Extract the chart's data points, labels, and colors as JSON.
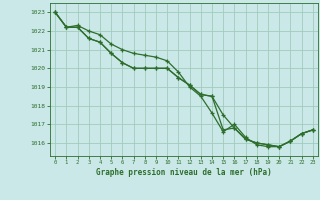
{
  "title": "Graphe pression niveau de la mer (hPa)",
  "bg_color": "#cbe8e8",
  "grid_color": "#a0ccbb",
  "line_color": "#2d6e2d",
  "marker_color": "#2d6e2d",
  "xlim": [
    -0.5,
    23.5
  ],
  "ylim": [
    1015.3,
    1023.5
  ],
  "yticks": [
    1016,
    1017,
    1018,
    1019,
    1020,
    1021,
    1022,
    1023
  ],
  "xticks": [
    0,
    1,
    2,
    3,
    4,
    5,
    6,
    7,
    8,
    9,
    10,
    11,
    12,
    13,
    14,
    15,
    16,
    17,
    18,
    19,
    20,
    21,
    22,
    23
  ],
  "series1": [
    1023.0,
    1022.2,
    1022.2,
    1021.6,
    1021.4,
    1020.8,
    1020.3,
    1020.0,
    1020.0,
    1020.0,
    1020.0,
    1019.5,
    1019.1,
    1018.6,
    1018.5,
    1016.7,
    1016.8,
    1016.2,
    1016.0,
    1015.9,
    1015.8,
    1016.1,
    1016.5,
    1016.7
  ],
  "series2": [
    1023.0,
    1022.2,
    1022.2,
    1021.6,
    1021.4,
    1020.8,
    1020.3,
    1020.0,
    1020.0,
    1020.0,
    1020.0,
    1019.5,
    1019.1,
    1018.6,
    1018.5,
    1017.5,
    1016.8,
    1016.2,
    1016.0,
    1015.9,
    1015.8,
    1016.1,
    1016.5,
    1016.7
  ],
  "series3": [
    1023.0,
    1022.2,
    1022.3,
    1022.0,
    1021.8,
    1021.3,
    1021.0,
    1020.8,
    1020.7,
    1020.6,
    1020.4,
    1019.8,
    1019.0,
    1018.5,
    1017.6,
    1016.6,
    1017.0,
    1016.3,
    1015.9,
    1015.8,
    1015.8,
    1016.1,
    1016.5,
    1016.7
  ]
}
